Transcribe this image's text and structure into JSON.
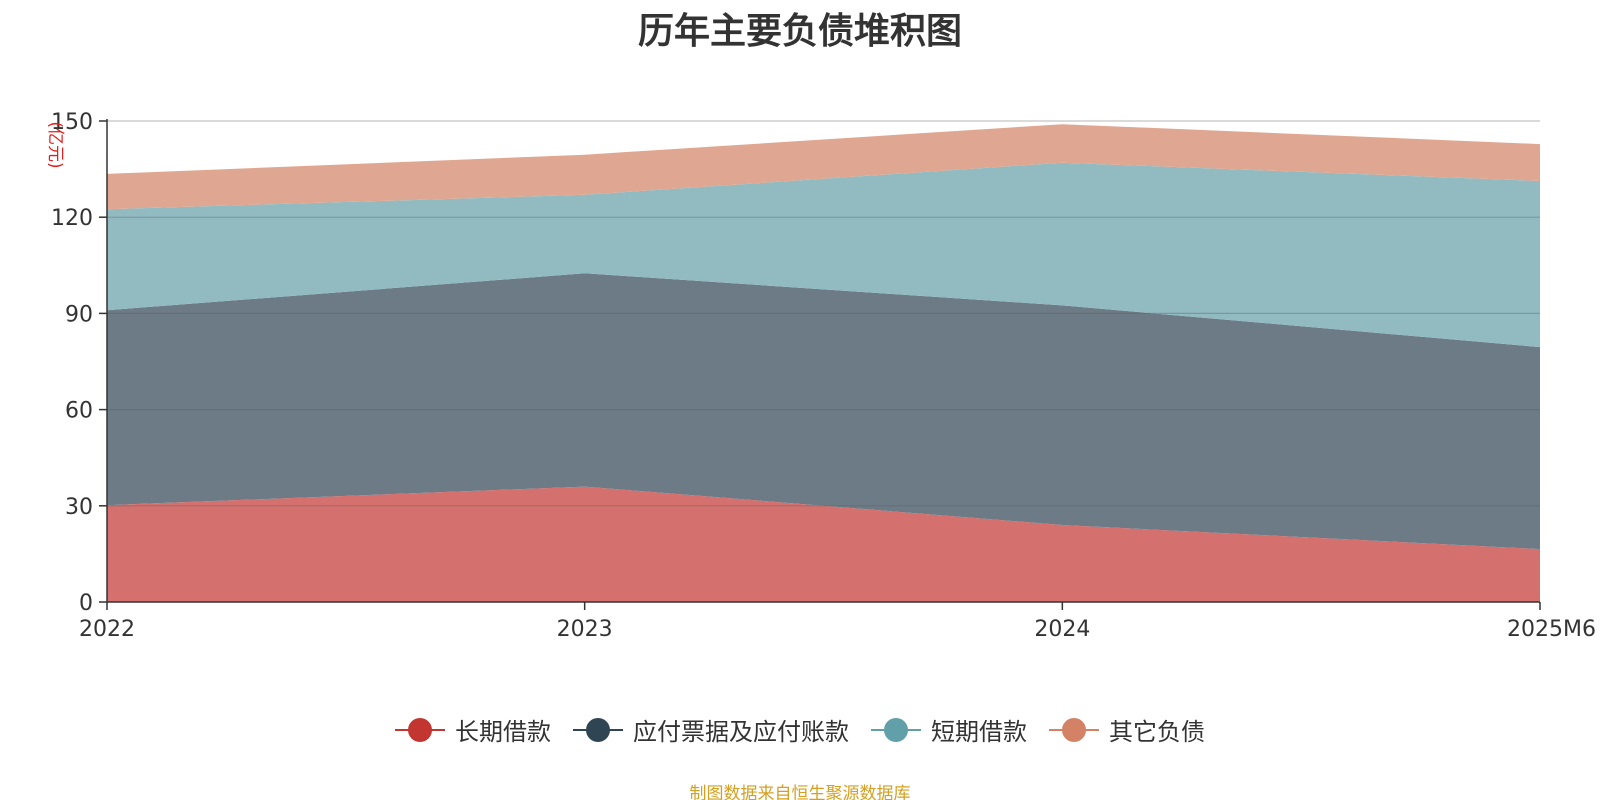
{
  "title": "历年主要负债堆积图",
  "source_note": "制图数据来自恒生聚源数据库",
  "chart_data": {
    "type": "area",
    "stacked": true,
    "title": "历年主要负债堆积图",
    "unit_label": "(亿元)",
    "xlabel": "",
    "ylabel": "",
    "categories": [
      "2022",
      "2023",
      "2024",
      "2025M6"
    ],
    "ylim": [
      0,
      150
    ],
    "yticks": [
      0,
      30,
      60,
      90,
      120,
      150
    ],
    "grid": true,
    "legend_position": "bottom",
    "series": [
      {
        "name": "长期借款",
        "color": "#c23531",
        "fill": "#d4716e",
        "values": [
          30.2,
          36.0,
          24.0,
          16.5
        ]
      },
      {
        "name": "应付票据及应付账款",
        "color": "#2f4554",
        "fill": "#6d7b86",
        "values": [
          60.8,
          66.5,
          68.5,
          63.0
        ]
      },
      {
        "name": "短期借款",
        "color": "#61a0a8",
        "fill": "#91bbc1",
        "values": [
          31.5,
          24.5,
          44.5,
          51.8
        ]
      },
      {
        "name": "其它负债",
        "color": "#d48265",
        "fill": "#dfa791",
        "values": [
          11.0,
          12.5,
          12.0,
          11.5
        ]
      }
    ]
  }
}
